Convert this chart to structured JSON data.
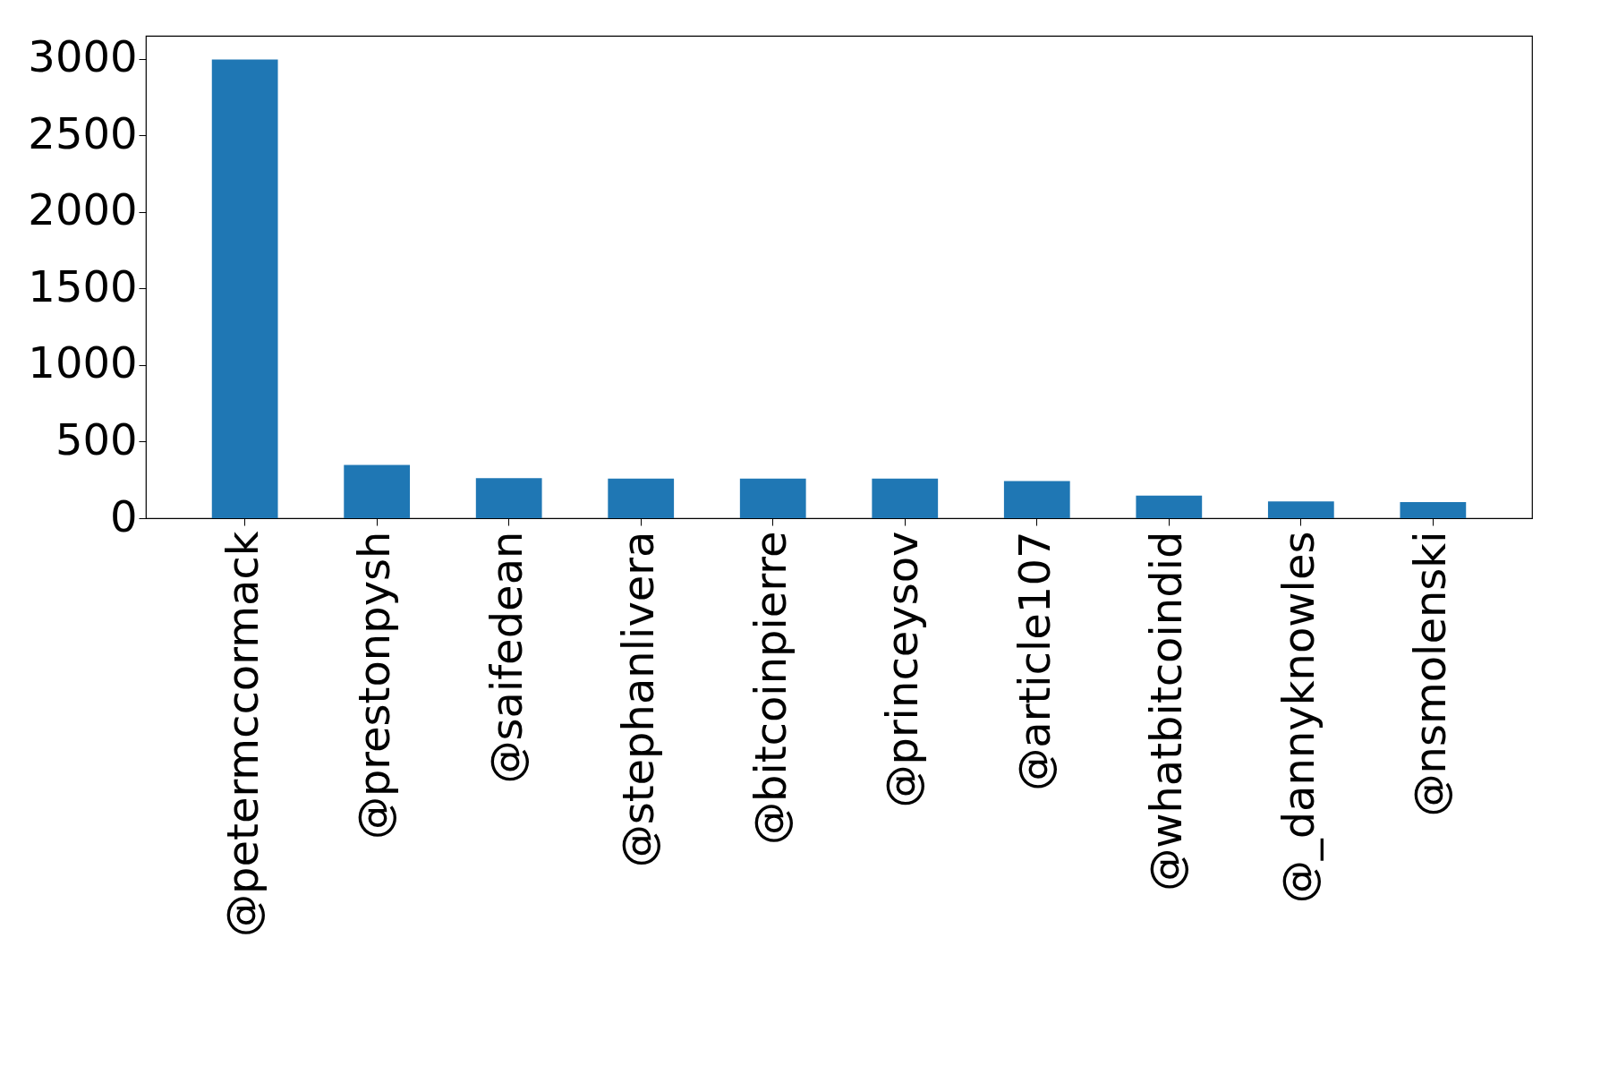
{
  "chart_data": {
    "type": "bar",
    "categories": [
      "@petermccormack",
      "@prestonpysh",
      "@saifedean",
      "@stephanlivera",
      "@bitcoinpierre",
      "@princeysov",
      "@article107",
      "@whatbitcoindid",
      "@_dannyknowles",
      "@nsmolenski"
    ],
    "values": [
      2995,
      348,
      262,
      258,
      258,
      258,
      242,
      147,
      110,
      105
    ],
    "color": "#1f77b4",
    "ylim": [
      0,
      3150
    ],
    "yticks": [
      0,
      500,
      1000,
      1500,
      2000,
      2500,
      3000
    ],
    "grid": false
  }
}
